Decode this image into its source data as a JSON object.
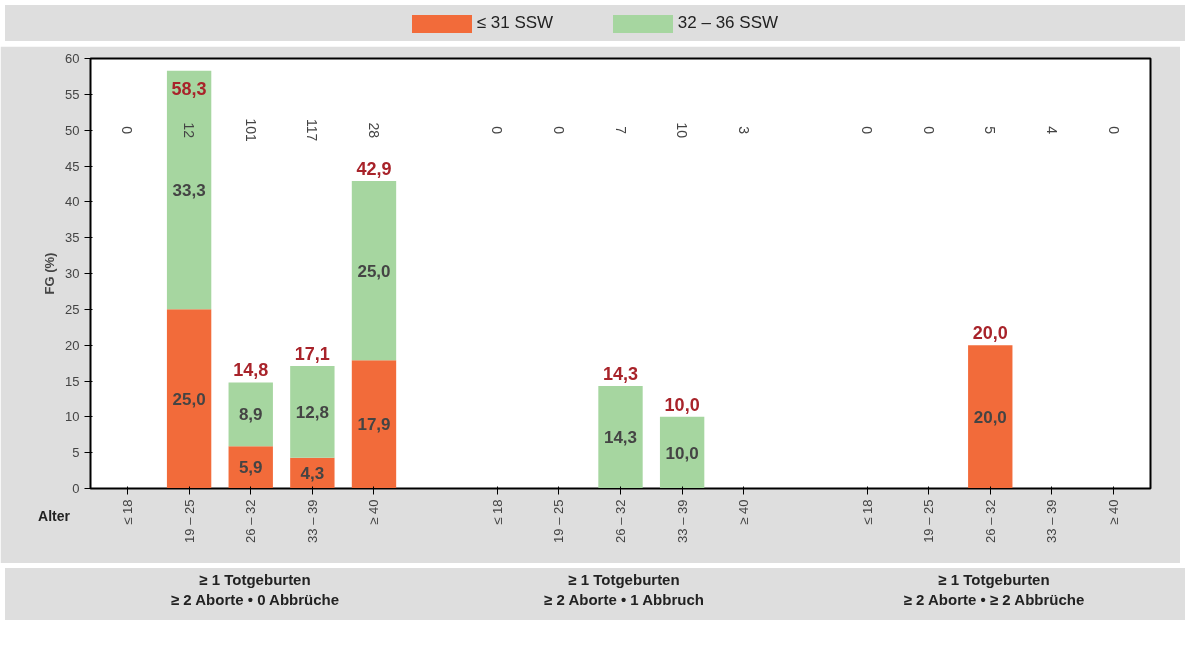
{
  "chart_data": {
    "type": "bar",
    "stacked": true,
    "ylabel": "FG (%)",
    "xlabel": "Alter",
    "categories": [
      "≤ 18",
      "19 – 25",
      "26 – 32",
      "33 – 39",
      "≥ 40",
      null,
      "≤ 18",
      "19 – 25",
      "26 – 32",
      "33 – 39",
      "≥ 40",
      null,
      "≤ 18",
      "19 – 25",
      "26 – 32",
      "33 – 39",
      "≥ 40"
    ],
    "series": [
      {
        "name": "≤ 31 SSW",
        "color": "#f26b3a",
        "values": [
          0,
          25.0,
          5.9,
          4.3,
          17.9,
          null,
          0,
          0,
          0,
          0,
          0,
          null,
          0,
          0,
          20.0,
          0,
          0
        ],
        "value_labels": [
          null,
          "25,0",
          "5,9",
          "4,3",
          "17,9",
          null,
          null,
          null,
          null,
          null,
          null,
          null,
          null,
          null,
          "20,0",
          null,
          null
        ]
      },
      {
        "name": "32 – 36 SSW",
        "color": "#a6d6a0",
        "values": [
          0,
          33.3,
          8.9,
          12.8,
          25.0,
          null,
          0,
          0,
          14.3,
          10.0,
          0,
          null,
          0,
          0,
          0,
          0,
          0
        ],
        "value_labels": [
          null,
          "33,3",
          "8,9",
          "12,8",
          "25,0",
          null,
          null,
          null,
          "14,3",
          "10,0",
          null,
          null,
          null,
          null,
          null,
          null,
          null
        ]
      }
    ],
    "totals": [
      null,
      "58,3",
      "14,8",
      "17,1",
      "42,9",
      null,
      null,
      null,
      "14,3",
      "10,0",
      null,
      null,
      null,
      null,
      "20,0",
      null,
      null
    ],
    "annotations": [
      "0",
      "12",
      "101",
      "117",
      "28",
      "0",
      "0",
      "7",
      "10",
      "3",
      "0",
      "0",
      "5",
      "4",
      "0",
      "≥ 1 Totgeburten\n≥ 2 Aborte • 0 Abbrüche",
      "≥ 1 Totgeburten\n≥ 2 Aborte • 1 Abbruch",
      "≥ 1 Totgeburten\n≥ 2 Aborte • ≥ 2 Abbrüche"
    ],
    "ylim": [
      0,
      60
    ],
    "yticks": [
      0,
      5,
      10,
      15,
      20,
      25,
      30,
      35,
      40,
      45,
      50,
      55,
      60
    ],
    "grid": false,
    "legend": "top"
  }
}
